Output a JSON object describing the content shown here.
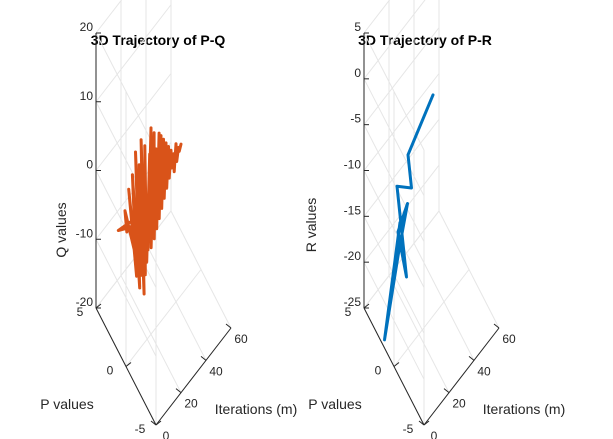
{
  "chart_data": [
    {
      "type": "line3d",
      "title": "3D Trajectory of P-Q",
      "xlabel": "Iterations (m)",
      "ylabel": "P values",
      "zlabel": "Q values",
      "xlim": [
        0,
        60
      ],
      "ylim": [
        -5,
        5
      ],
      "zlim": [
        -20,
        20
      ],
      "xticks": [
        0,
        20,
        40,
        60
      ],
      "yticks": [
        -5,
        0,
        5
      ],
      "zticks": [
        -20,
        -10,
        0,
        10,
        20
      ],
      "series": [
        {
          "name": "P-Q",
          "color": "#D95319",
          "x": [
            0,
            1,
            2,
            3,
            4,
            5,
            6,
            7,
            8,
            9,
            10,
            11,
            12,
            13,
            14,
            15,
            16,
            17,
            18,
            19,
            20,
            21,
            22,
            23,
            24,
            25,
            26,
            27,
            28,
            29,
            30,
            31,
            32,
            33,
            34,
            35,
            36,
            37,
            38,
            39,
            40,
            41,
            42,
            43,
            44
          ],
          "y": [
            -1,
            1.5,
            -2,
            0.5,
            1,
            -0.5,
            0.8,
            -0.3,
            0.6,
            -0.4,
            0.5,
            -0.2,
            0.3,
            -0.3,
            0.4,
            -0.1,
            0.2,
            0.1,
            -0.2,
            0.3,
            0,
            0.2,
            -0.1,
            0.1,
            0,
            0.1,
            -0.1,
            0.1,
            0,
            0.1,
            0,
            0.1,
            0,
            0.1,
            0,
            0.1,
            0,
            0.1,
            0,
            0.1,
            0,
            0.1,
            0,
            0.1,
            0
          ],
          "z": [
            2,
            -3,
            5,
            -2,
            0,
            -4,
            3,
            -8,
            5,
            -10,
            8,
            -9,
            6,
            -12,
            9,
            -10,
            8,
            -9,
            7,
            -8,
            10,
            -8,
            9,
            -7,
            6,
            -6,
            8,
            -5,
            7,
            -4,
            6,
            -3,
            5,
            -2,
            4,
            -1,
            3,
            0,
            2,
            -1,
            3,
            0,
            2,
            1,
            2
          ]
        }
      ]
    },
    {
      "type": "line3d",
      "title": "3D Trajectory of P-R",
      "xlabel": "Iterations (m)",
      "ylabel": "P values",
      "zlabel": "R values",
      "xlim": [
        0,
        60
      ],
      "ylim": [
        -5,
        5
      ],
      "zlim": [
        -25,
        5
      ],
      "xticks": [
        0,
        20,
        40,
        60
      ],
      "yticks": [
        -5,
        0,
        5
      ],
      "zticks": [
        -25,
        -20,
        -15,
        -10,
        -5,
        0,
        5
      ],
      "series": [
        {
          "name": "P-R",
          "color": "#0072BD",
          "x": [
            0,
            2,
            4,
            6,
            8,
            10,
            12,
            14,
            16,
            36
          ],
          "y": [
            -1,
            2,
            0,
            -1,
            1,
            0,
            2,
            0,
            1,
            1
          ],
          "z": [
            -8,
            -25,
            -13,
            -7,
            -13,
            -17,
            -10,
            -8,
            -6,
            -3
          ]
        }
      ]
    }
  ]
}
